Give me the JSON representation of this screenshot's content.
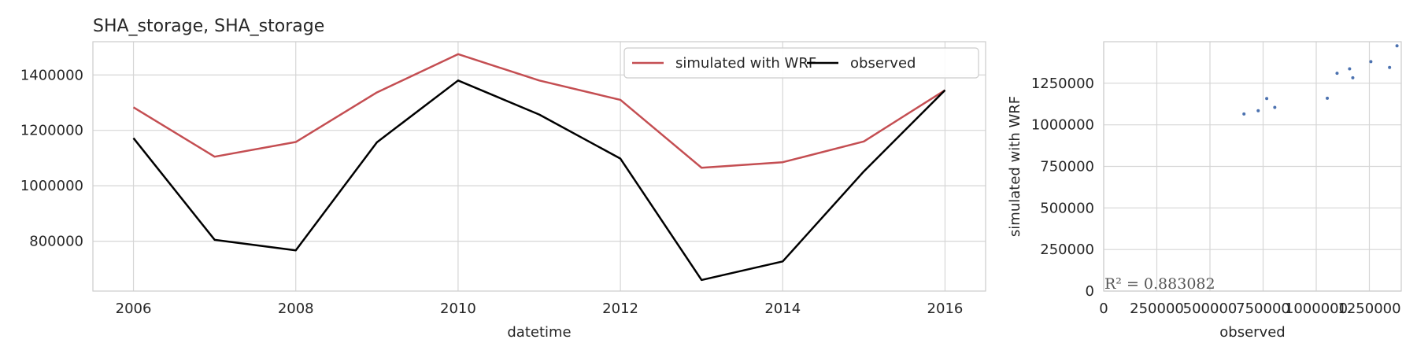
{
  "chart_data": [
    {
      "type": "line",
      "title": "SHA_storage, SHA_storage",
      "xlabel": "datetime",
      "ylabel": "",
      "x": [
        2006,
        2007,
        2008,
        2009,
        2010,
        2011,
        2012,
        2013,
        2014,
        2015,
        2016
      ],
      "xlim": [
        2005.5,
        2016.5
      ],
      "ylim": [
        620000,
        1520000
      ],
      "xticks": [
        "2006",
        "2008",
        "2010",
        "2012",
        "2014",
        "2016"
      ],
      "yticks": [
        "800000",
        "1000000",
        "1200000",
        "1400000"
      ],
      "grid": true,
      "legend": "top-right",
      "series": [
        {
          "name": "simulated with WRF",
          "color": "#c44e52",
          "values": [
            1283000,
            1105000,
            1158000,
            1337000,
            1475000,
            1380000,
            1310000,
            1065000,
            1085000,
            1160000,
            1345000
          ]
        },
        {
          "name": "observed",
          "color": "#000000",
          "values": [
            1172000,
            805000,
            767000,
            1157000,
            1380000,
            1257000,
            1098000,
            660000,
            727000,
            1052000,
            1345000
          ]
        }
      ]
    },
    {
      "type": "scatter",
      "xlabel": "observed",
      "ylabel": "simulated with WRF",
      "xlim": [
        0,
        1400000
      ],
      "ylim": [
        0,
        1500000
      ],
      "xticks": [
        "0",
        "250000",
        "500000",
        "750000",
        "1000000",
        "1250000"
      ],
      "yticks": [
        "0",
        "250000",
        "500000",
        "750000",
        "1000000",
        "1250000"
      ],
      "grid": true,
      "color": "#4c72b0",
      "annotation": "R² = 0.883082",
      "points": [
        {
          "x": 660000,
          "y": 1065000
        },
        {
          "x": 727000,
          "y": 1085000
        },
        {
          "x": 767000,
          "y": 1158000
        },
        {
          "x": 805000,
          "y": 1105000
        },
        {
          "x": 1052000,
          "y": 1160000
        },
        {
          "x": 1098000,
          "y": 1310000
        },
        {
          "x": 1157000,
          "y": 1337000
        },
        {
          "x": 1172000,
          "y": 1283000
        },
        {
          "x": 1257000,
          "y": 1380000
        },
        {
          "x": 1345000,
          "y": 1345000
        },
        {
          "x": 1380000,
          "y": 1475000
        }
      ]
    }
  ]
}
